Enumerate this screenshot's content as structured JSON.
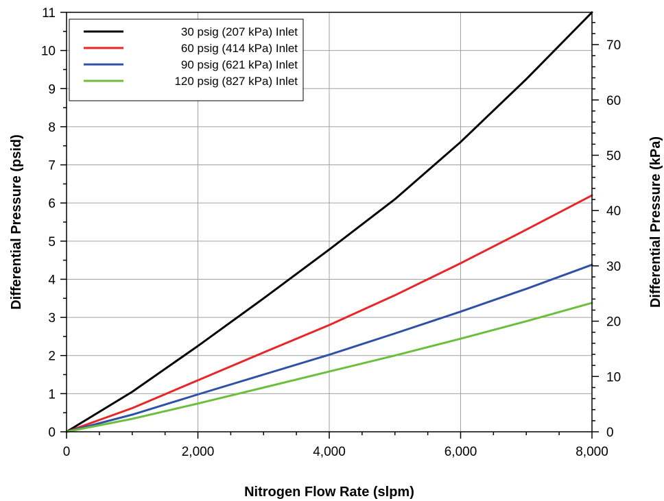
{
  "chart_data": {
    "type": "line",
    "xlabel": "Nitrogen Flow Rate (slpm)",
    "ylabel": "Differential Pressure (psid)",
    "y2label": "Differential Pressure (kPa)",
    "xlim": [
      0,
      8000
    ],
    "ylim": [
      0,
      11
    ],
    "y2lim": [
      0,
      75.84
    ],
    "grid": true,
    "legend_position": "top-left",
    "x_ticks": [
      0,
      2000,
      4000,
      6000,
      8000
    ],
    "x_tick_labels": [
      "0",
      "2,000",
      "4,000",
      "6,000",
      "8,000"
    ],
    "y_ticks": [
      0,
      1,
      2,
      3,
      4,
      5,
      6,
      7,
      8,
      9,
      10,
      11
    ],
    "y_tick_labels": [
      "0",
      "1",
      "2",
      "3",
      "4",
      "5",
      "6",
      "7",
      "8",
      "9",
      "10",
      "11"
    ],
    "y2_ticks": [
      0,
      10,
      20,
      30,
      40,
      50,
      60,
      70
    ],
    "y2_tick_labels": [
      "0",
      "10",
      "20",
      "30",
      "40",
      "50",
      "60",
      "70"
    ],
    "x": [
      0,
      1000,
      2000,
      3000,
      4000,
      5000,
      6000,
      7000,
      8000
    ],
    "series": [
      {
        "name": "30 psig (207 kPa) Inlet",
        "color": "#000000",
        "values": [
          0,
          1.05,
          2.25,
          3.5,
          4.78,
          6.1,
          7.6,
          9.25,
          11.0
        ]
      },
      {
        "name": "60 psig (414 kPa) Inlet",
        "color": "#e8262a",
        "values": [
          0,
          0.62,
          1.35,
          2.08,
          2.8,
          3.58,
          4.42,
          5.3,
          6.2
        ]
      },
      {
        "name": "90 psig (621 kPa) Inlet",
        "color": "#3050a8",
        "values": [
          0,
          0.45,
          0.98,
          1.5,
          2.02,
          2.58,
          3.15,
          3.75,
          4.38
        ]
      },
      {
        "name": "120 psig (827 kPa) Inlet",
        "color": "#6cbf3c",
        "values": [
          0,
          0.34,
          0.74,
          1.16,
          1.58,
          2.0,
          2.44,
          2.9,
          3.38
        ]
      }
    ]
  }
}
